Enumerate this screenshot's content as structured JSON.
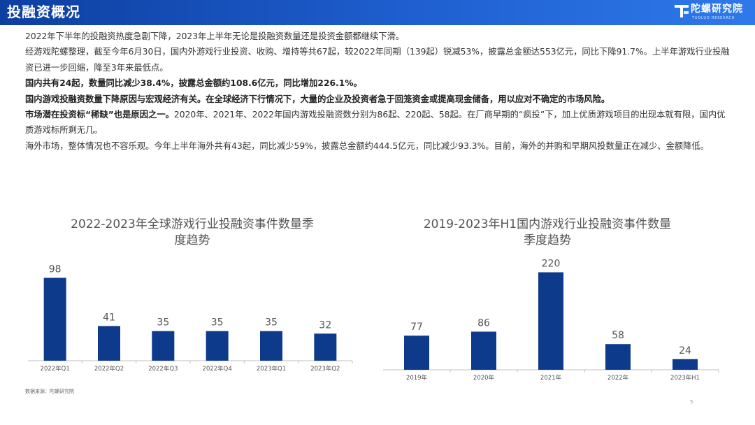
{
  "header": {
    "title": "投融资概况",
    "logo_cn": "陀螺研究院",
    "logo_en": "TUOLUO RESEARCH"
  },
  "paragraphs": [
    "2022年下半年的投融资热度急剧下降，2023年上半年无论是投融资数量还是投资金额都继续下滑。",
    "经游戏陀螺整理，截至今年6月30日，国内外游戏行业投资、收购、增持等共67起，较2022年同期（139起）锐减53%，披露总金额达553亿元，同比下降91.7%。上半年游戏行业投融资已进一步回缩，降至3年来最低点。",
    "国内共有24起，数量同比减少38.4%，披露总金额约108.6亿元，同比增加226.1%。",
    "国内游戏投融资数量下降原因与宏观经济有关。在全球经济下行情况下，大量的企业及投资者急于回笼资金或提高现金储备，用以应对不确定的市场风险。",
    "市场潜在投资标“稀缺”也是原因之一。2020年、2021年、2022年国内游戏投融资数分别为86起、220起、58起。在厂商早期的“疯投”下，加上优质游戏项目的出现本就有限，国内优质游戏标所剩无几。",
    "海外市场，整体情况也不容乐观。今年上半年海外共有43起，同比减少59%，披露总金额约444.5亿元，同比减少93.3%。目前，海外的并购和早期风投数量正在减少、金额降低。"
  ],
  "chart_data": [
    {
      "type": "bar",
      "title": "2022-2023年全球游戏行业投融资事件数量季度趋势",
      "categories": [
        "2022年Q1",
        "2022年Q2",
        "2022年Q3",
        "2022年Q4",
        "2023年Q1",
        "2023年Q2"
      ],
      "values": [
        98,
        41,
        35,
        35,
        35,
        32
      ],
      "ylim": [
        0,
        105
      ],
      "bar_color": "#0e3a8c",
      "grid": false
    },
    {
      "type": "bar",
      "title": "2019-2023年H1国内游戏行业投融资事件数量季度趋势",
      "categories": [
        "2019年",
        "2020年",
        "2021年",
        "2022年",
        "2023年H1"
      ],
      "values": [
        77,
        86,
        220,
        58,
        24
      ],
      "ylim": [
        0,
        235
      ],
      "bar_color": "#0e3a8c",
      "grid": false
    }
  ],
  "chart1_title_lines": [
    "2022-2023年全球游戏行业投融资事件数量季",
    "度趋势"
  ],
  "chart2_title_lines": [
    "2019-2023年H1国内游戏行业投融资事件数量",
    "季度趋势"
  ],
  "source": "数据来源：陀螺研究院",
  "page_number": "5"
}
